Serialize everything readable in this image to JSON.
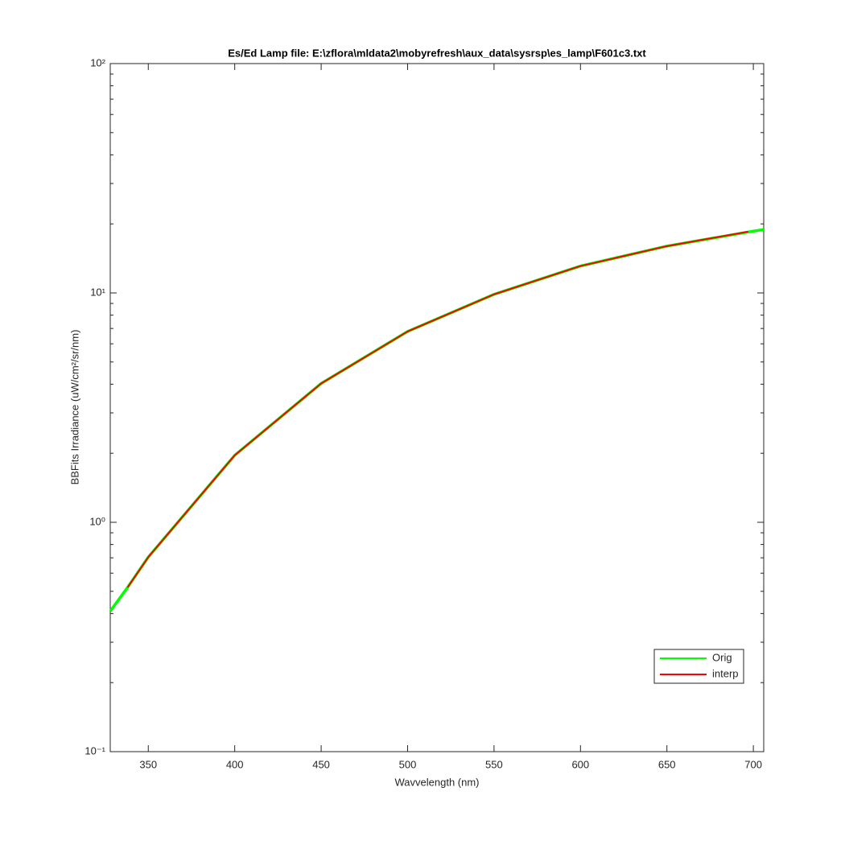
{
  "chart_data": {
    "type": "line",
    "title": "Es/Ed Lamp file: E:\\zflora\\mldata2\\mobyrefresh\\aux_data\\sysrsp\\es_lamp\\F601c3.txt",
    "x_label": "Wavvelength (nm)",
    "y_label": "BBFits Irradiance (uW/cm²/sr/nm)",
    "log_y": true,
    "xlim": [
      328,
      706
    ],
    "ylim": [
      0.1,
      100
    ],
    "xticks": [
      350,
      400,
      450,
      500,
      550,
      600,
      650,
      700
    ],
    "yticks": [
      {
        "value": 0.1,
        "label": "10⁻¹"
      },
      {
        "value": 1,
        "label": "10⁰"
      },
      {
        "value": 10,
        "label": "10¹"
      },
      {
        "value": 100,
        "label": "10²"
      }
    ],
    "legend": "lower right",
    "series": [
      {
        "name": "Orig",
        "color": "#00ff00",
        "x": [
          328,
          338,
          350,
          400,
          450,
          500,
          550,
          600,
          650,
          700,
          706
        ],
        "values": [
          0.41,
          0.52,
          0.705,
          1.96,
          4.03,
          6.79,
          9.86,
          13.1,
          16.0,
          18.6,
          18.9
        ]
      },
      {
        "name": "interp",
        "color": "#ff0000",
        "x": [
          338,
          350,
          400,
          450,
          500,
          550,
          600,
          650,
          697
        ],
        "values": [
          0.52,
          0.705,
          1.96,
          4.03,
          6.79,
          9.86,
          13.1,
          16.0,
          18.5
        ]
      }
    ]
  }
}
